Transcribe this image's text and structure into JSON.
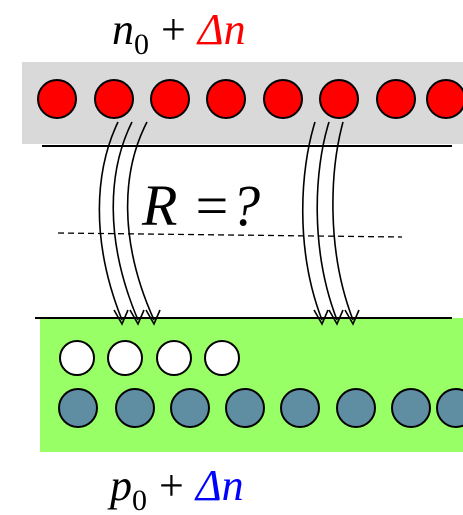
{
  "top_label": {
    "symbol": "n",
    "subscript": "0",
    "operator": "+",
    "delta": "Δn"
  },
  "middle_label": "R =?",
  "bottom_label": {
    "symbol": "p",
    "subscript": "0",
    "operator": "+",
    "delta": "Δn"
  }
}
